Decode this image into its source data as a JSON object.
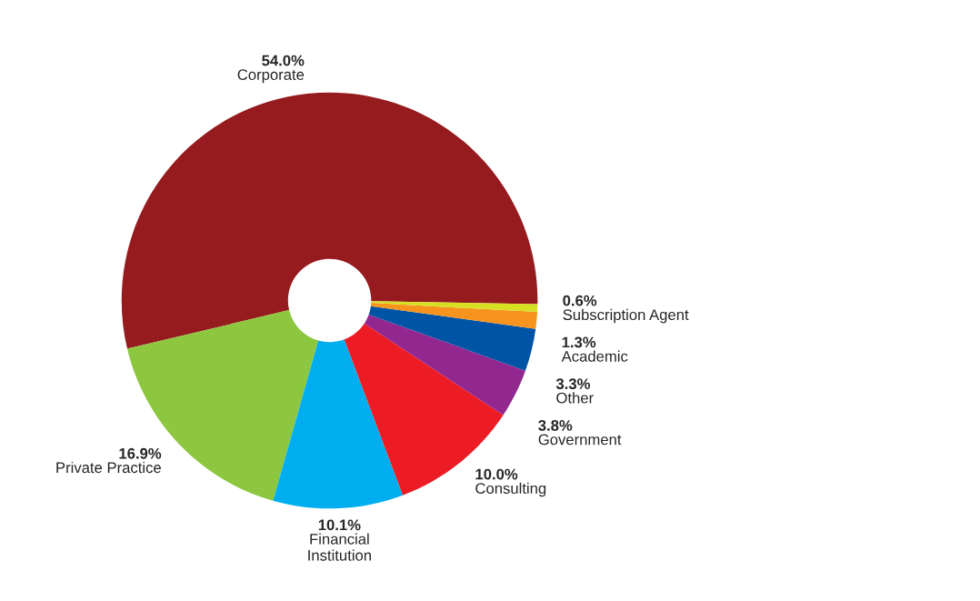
{
  "chart_data": {
    "type": "donut",
    "categories": [
      "Corporate",
      "Private Practice",
      "Financial\nInstitution",
      "Consulting",
      "Government",
      "Other",
      "Academic",
      "Subscription Agent"
    ],
    "values": [
      54.0,
      16.9,
      10.1,
      10.0,
      3.8,
      3.3,
      1.3,
      0.6
    ],
    "colors": [
      "#961b1e",
      "#8dc63f",
      "#00aeef",
      "#ed1c24",
      "#92278f",
      "#0054a6",
      "#f7941d",
      "#d7df23"
    ],
    "value_labels": [
      "54.0%",
      "16.9%",
      "10.1%",
      "10.0%",
      "3.8%",
      "3.3%",
      "1.3%",
      "0.6%"
    ],
    "legend": false
  }
}
